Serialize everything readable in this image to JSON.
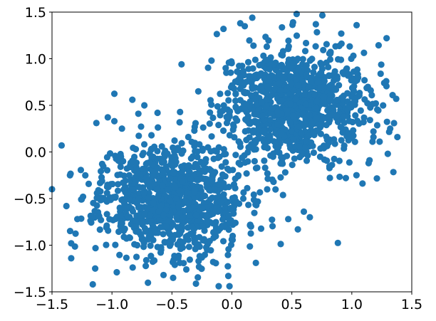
{
  "chart_data": {
    "type": "scatter",
    "title": "",
    "xlabel": "",
    "ylabel": "",
    "xlim": [
      -1.5,
      1.5
    ],
    "ylim": [
      -1.5,
      1.5
    ],
    "grid": false,
    "legend": "none",
    "xticks": [
      "−1.5",
      "−1.0",
      "−0.5",
      "0.0",
      "0.5",
      "1.0",
      "1.5"
    ],
    "xtick_values": [
      -1.5,
      -1.0,
      -0.5,
      0.0,
      0.5,
      1.0,
      1.5
    ],
    "yticks": [
      "−1.5",
      "−1.0",
      "−0.5",
      "0.0",
      "0.5",
      "1.0",
      "1.5"
    ],
    "ytick_values": [
      -1.5,
      -1.0,
      -0.5,
      0.0,
      0.5,
      1.0,
      1.5
    ],
    "point_color": "#1f77b4",
    "series": [
      {
        "points_count": 2000,
        "clusters": [
          {
            "center": [
              -0.5,
              -0.5
            ],
            "spread": 0.3,
            "count": 1000,
            "seed": 11
          },
          {
            "center": [
              0.5,
              0.5
            ],
            "spread": 0.3,
            "count": 1000,
            "seed": 29
          }
        ],
        "points": [
          [
            -1.5,
            -0.4
          ],
          [
            -1.42,
            0.07
          ],
          [
            -1.35,
            -0.25
          ],
          [
            -1.38,
            -0.58
          ],
          [
            -1.34,
            -0.98
          ],
          [
            -1.34,
            -1.14
          ],
          [
            -1.16,
            -1.42
          ],
          [
            -1.14,
            -1.25
          ],
          [
            -0.96,
            -1.29
          ],
          [
            -0.83,
            0.56
          ],
          [
            -0.73,
            0.5
          ],
          [
            -1.13,
            0.31
          ],
          [
            -0.57,
            -1.32
          ],
          [
            -0.49,
            -1.35
          ],
          [
            -0.38,
            -1.26
          ],
          [
            -0.11,
            -1.44
          ],
          [
            -0.02,
            -1.44
          ],
          [
            -0.03,
            -1.33
          ],
          [
            0.2,
            -1.19
          ],
          [
            0.47,
            -0.72
          ],
          [
            0.55,
            -0.83
          ],
          [
            0.6,
            -0.64
          ],
          [
            0.65,
            -0.7
          ],
          [
            0.95,
            -0.28
          ],
          [
            0.17,
            1.44
          ],
          [
            0.54,
            1.48
          ],
          [
            0.07,
            1.38
          ],
          [
            -0.07,
            1.32
          ],
          [
            0.51,
            1.39
          ],
          [
            0.7,
            1.37
          ],
          [
            1.04,
            1.36
          ],
          [
            1.29,
            1.22
          ],
          [
            1.27,
            0.74
          ],
          [
            1.34,
            0.61
          ],
          [
            1.37,
            0.57
          ],
          [
            1.32,
            0.25
          ],
          [
            1.38,
            0.16
          ],
          [
            1.3,
            -0.02
          ],
          [
            1.14,
            -0.12
          ],
          [
            1.2,
            0.52
          ],
          [
            0.18,
            1.14
          ],
          [
            -0.42,
            0.94
          ],
          [
            -0.17,
            0.98
          ],
          [
            -0.01,
            0.85
          ],
          [
            -0.28,
            0.65
          ],
          [
            -0.62,
            0.42
          ],
          [
            -0.98,
            0.33
          ],
          [
            -0.78,
            0.41
          ]
        ]
      }
    ]
  }
}
